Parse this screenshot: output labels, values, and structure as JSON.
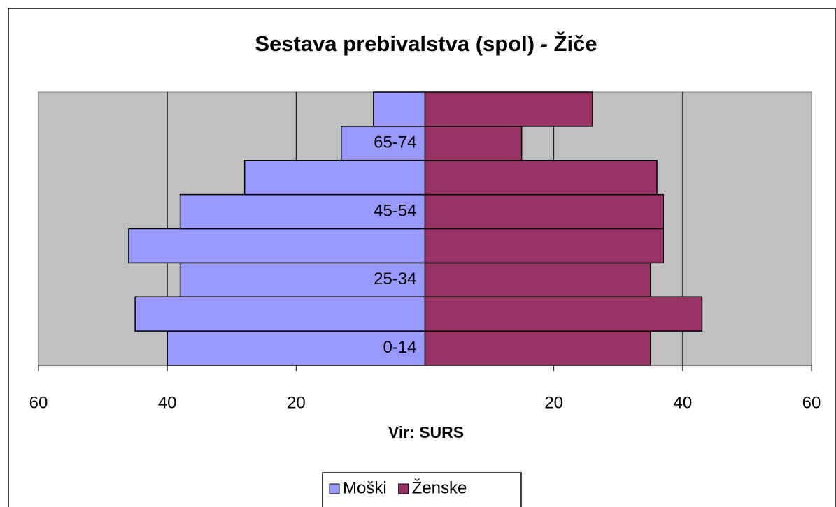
{
  "chart_data": {
    "type": "bar",
    "orientation": "horizontal",
    "title": "Sestava prebivalstva (spol) - Žiče",
    "x_label": "Vir: SURS",
    "categories": [
      "0-14",
      null,
      "25-34",
      null,
      "45-54",
      null,
      "65-74",
      null
    ],
    "series": [
      {
        "name": "Moški",
        "color": "#9999ff",
        "values": [
          40,
          45,
          38,
          46,
          38,
          28,
          13,
          8
        ]
      },
      {
        "name": "Ženske",
        "color": "#993366",
        "values": [
          35,
          43,
          35,
          37,
          37,
          36,
          15,
          26
        ]
      }
    ],
    "xlim": [
      -60,
      60
    ],
    "xticks": [
      {
        "value": -60,
        "label": "60"
      },
      {
        "value": -40,
        "label": "40"
      },
      {
        "value": -20,
        "label": "20"
      },
      20,
      40,
      60
    ],
    "grid": true,
    "legend": "bottom"
  }
}
